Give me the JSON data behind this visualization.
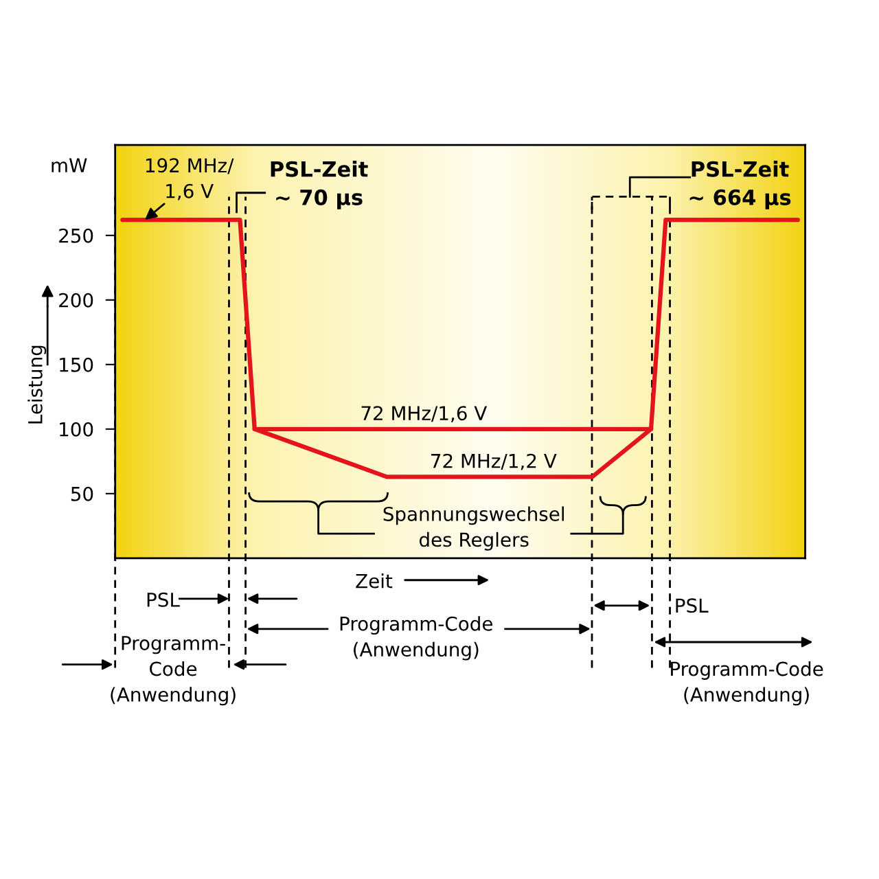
{
  "chart_data": {
    "type": "line",
    "ylabel": "Leistung",
    "ylim": [
      0,
      320
    ],
    "yticks": [
      50,
      100,
      150,
      200,
      250
    ],
    "tick_labels": "y",
    "grid": false,
    "marker": "none",
    "line_style": "solid",
    "categories": [
      null,
      null,
      null,
      null,
      null,
      null,
      null,
      null,
      null,
      null,
      null,
      null,
      null,
      null,
      null,
      null,
      null,
      null,
      null,
      null,
      null,
      null,
      null,
      null,
      null,
      null,
      null,
      null,
      null,
      null,
      null,
      null,
      null,
      null,
      null,
      null,
      null,
      null,
      null,
      null,
      null,
      null,
      null,
      null,
      null,
      null,
      null
    ],
    "series": [
      {
        "color": "#e3141b",
        "values": [
          262,
          null,
          null,
          null,
          null,
          null,
          null,
          null,
          262,
          100,
          null,
          null,
          null,
          null,
          null,
          null,
          null,
          null,
          null,
          null,
          null,
          null,
          null,
          null,
          null,
          null,
          null,
          null,
          null,
          null,
          null,
          null,
          null,
          null,
          null,
          null,
          100,
          262,
          null,
          null,
          null,
          null,
          null,
          null,
          null,
          null,
          262
        ]
      },
      {
        "color": "#e3141b",
        "values": [
          null,
          null,
          null,
          null,
          null,
          null,
          null,
          null,
          null,
          100,
          null,
          null,
          null,
          null,
          null,
          null,
          null,
          null,
          63,
          null,
          null,
          null,
          null,
          null,
          null,
          null,
          null,
          null,
          null,
          null,
          null,
          null,
          63,
          null,
          null,
          null,
          100,
          null,
          null,
          null,
          null,
          null,
          null,
          null,
          null,
          null,
          null
        ]
      }
    ],
    "annotations": [
      {
        "text": "192 MHz/\n1,6 V",
        "y": 262
      },
      {
        "text": "72 MHz/1,6 V",
        "y": 100
      },
      {
        "text": "72 MHz/1,2 V",
        "y": 63
      },
      "PSL-Zeit\n~ 70 µs",
      "PSL-Zeit\n~ 664 µs",
      "Spannungswechsel\ndes Reglers",
      "mW",
      "Zeit",
      "PSL",
      "Programm-Code\n(Anwendung)",
      "Programm-\nCode\n(Anwendung)",
      "PSL",
      "Programm-Code\n(Anwendung)"
    ]
  }
}
